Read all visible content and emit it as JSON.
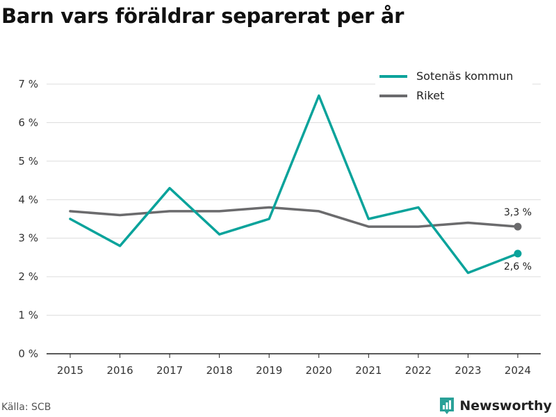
{
  "colors": {
    "sotenas": "#0aa39b",
    "riket": "#6b6b6d",
    "grid": "#dcdcdc",
    "axis": "#222222",
    "brand": "#2aa198"
  },
  "brand": {
    "name": "Newsworthy",
    "icon": "chart-logo-icon"
  },
  "source": "Källa: SCB",
  "chart_data": {
    "type": "line",
    "title": "Barn vars föräldrar separerat per år",
    "x": [
      "2015",
      "2016",
      "2017",
      "2018",
      "2019",
      "2020",
      "2021",
      "2022",
      "2023",
      "2024"
    ],
    "y_ticks": [
      "0 %",
      "1 %",
      "2 %",
      "3 %",
      "4 %",
      "5 %",
      "6 %",
      "7 %"
    ],
    "ylim": [
      0,
      7
    ],
    "grid": true,
    "legend_position": "top-right",
    "series": [
      {
        "name": "Sotenäs kommun",
        "color": "#0aa39b",
        "values": [
          3.5,
          2.8,
          4.3,
          3.1,
          3.5,
          6.7,
          3.5,
          3.8,
          2.1,
          2.6
        ],
        "end_label": "2,6 %"
      },
      {
        "name": "Riket",
        "color": "#6b6b6d",
        "values": [
          3.7,
          3.6,
          3.7,
          3.7,
          3.8,
          3.7,
          3.3,
          3.3,
          3.4,
          3.3
        ],
        "end_label": "3,3 %"
      }
    ]
  }
}
